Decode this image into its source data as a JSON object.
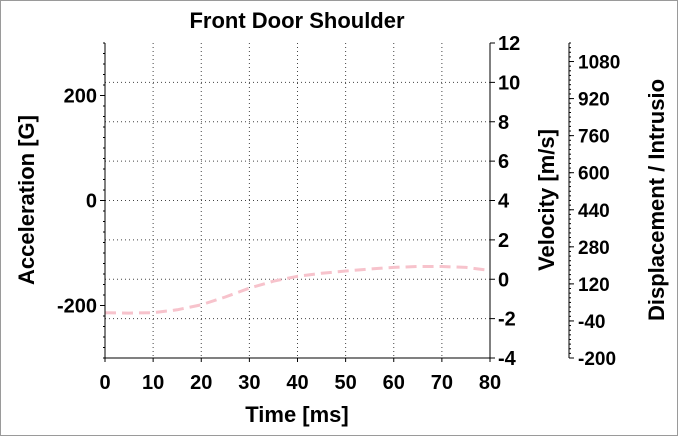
{
  "chart_data": {
    "type": "line",
    "title": "Front Door Shoulder",
    "xlabel": "Time [ms]",
    "ylabel_left": "Acceleration [G]",
    "ylabel_right": "Velocity [m/s]",
    "ylabel_right2": "Displacement / Intrusio",
    "xlim": [
      0,
      80
    ],
    "ylim_left": [
      -300,
      300
    ],
    "ylim_right": [
      -4,
      12
    ],
    "ylim_right2": [
      -200,
      1160
    ],
    "x_ticks": [
      "0",
      "10",
      "20",
      "30",
      "40",
      "50",
      "60",
      "70",
      "80"
    ],
    "y_ticks_left": [
      "200",
      "0",
      "-200"
    ],
    "y_ticks_right": [
      "12",
      "10",
      "8",
      "6",
      "4",
      "2",
      "0",
      "-2",
      "-4"
    ],
    "y_ticks_right2": [
      "1080",
      "920",
      "760",
      "600",
      "440",
      "280",
      "120",
      "-40",
      "-200"
    ],
    "grid": true,
    "series": [
      {
        "axis": "right",
        "color": "#f7c3cc",
        "style": "dashed",
        "x": [
          0,
          5,
          10,
          15,
          20,
          25,
          30,
          35,
          40,
          45,
          50,
          55,
          60,
          65,
          70,
          75,
          80
        ],
        "y": [
          -1.7,
          -1.72,
          -1.7,
          -1.55,
          -1.3,
          -0.9,
          -0.45,
          -0.1,
          0.15,
          0.3,
          0.42,
          0.52,
          0.6,
          0.65,
          0.65,
          0.6,
          0.45
        ]
      }
    ]
  }
}
